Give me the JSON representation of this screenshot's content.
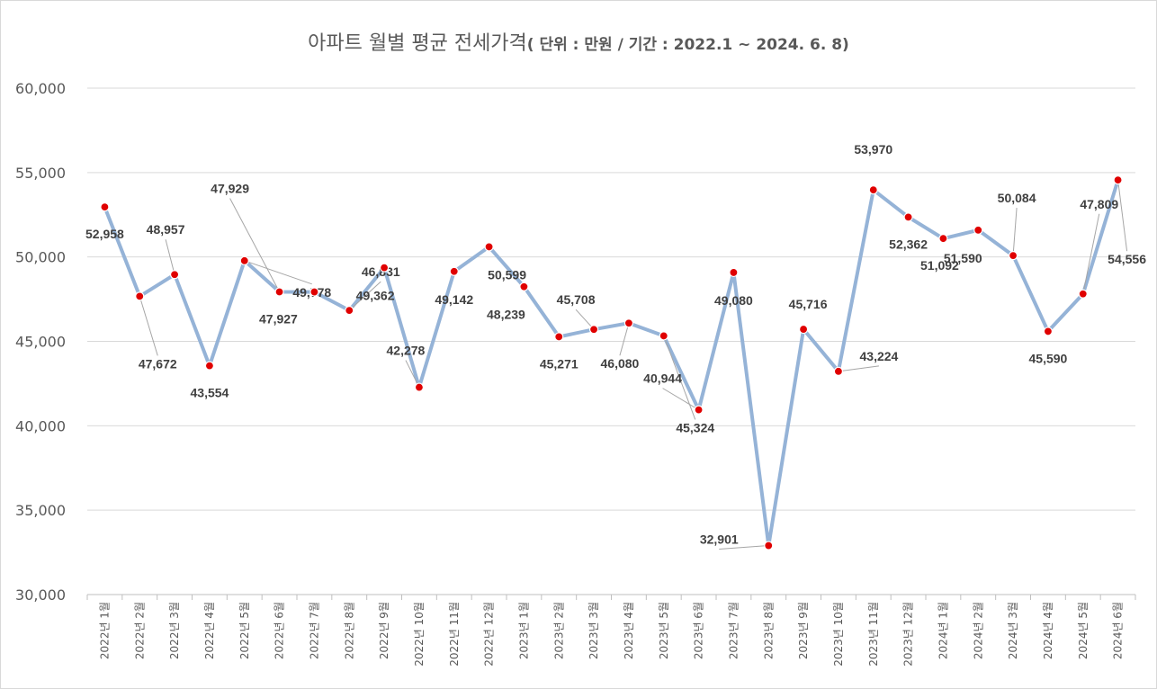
{
  "chart_data": {
    "type": "line",
    "title": "아파트 월별 평균 전세가격",
    "subtitle": "( 단위 : 만원  / 기간 : 2022.1 ~ 2024. 6. 8)",
    "xlabel": "",
    "ylabel": "",
    "ylim": [
      30000,
      60000
    ],
    "yticks": [
      30000,
      35000,
      40000,
      45000,
      50000,
      55000,
      60000
    ],
    "ytick_labels": [
      "30,000",
      "35,000",
      "40,000",
      "45,000",
      "50,000",
      "55,000",
      "60,000"
    ],
    "grid": true,
    "legend": "none",
    "categories": [
      "2022년 1월",
      "2022년 2월",
      "2022년 3월",
      "2022년 4월",
      "2022년 5월",
      "2022년 6월",
      "2022년 7월",
      "2022년 8월",
      "2022년 9월",
      "2022년 10월",
      "2022년 11월",
      "2022년 12월",
      "2023년 1월",
      "2023년 2월",
      "2023년 3월",
      "2023년 4월",
      "2023년 5월",
      "2023년 6월",
      "2023년 7월",
      "2023년 8월",
      "2023년 9월",
      "2023년 10월",
      "2023년 11월",
      "2023년 12월",
      "2024년 1월",
      "2024년 2월",
      "2024년 3월",
      "2024년 4월",
      "2024년 5월",
      "2024년 6월"
    ],
    "values": [
      52958,
      47672,
      48957,
      43554,
      49778,
      47929,
      47927,
      46831,
      49362,
      42278,
      49142,
      50599,
      48239,
      45271,
      45708,
      46080,
      45324,
      40944,
      49080,
      32901,
      45716,
      43224,
      53970,
      52362,
      51092,
      51590,
      50084,
      45590,
      47809,
      54556
    ],
    "data_labels": [
      "52,958",
      "47,672",
      "48,957",
      "43,554",
      "49,778",
      "47,929",
      "47,927",
      "46,831",
      "49,362",
      "42,278",
      "49,142",
      "50,599",
      "48,239",
      "45,271",
      "45,708",
      "46,080",
      "45,324",
      "40,944",
      "49,080",
      "32,901",
      "45,716",
      "43,224",
      "53,970",
      "52,362",
      "51,092",
      "51,590",
      "50,084",
      "45,590",
      "47,809",
      "54,556"
    ],
    "colors": {
      "line": "#95b3d7",
      "marker": "#e00000",
      "grid": "#d9d9d9",
      "text": "#595959",
      "label": "#404040",
      "leader": "#a6a6a6"
    }
  }
}
